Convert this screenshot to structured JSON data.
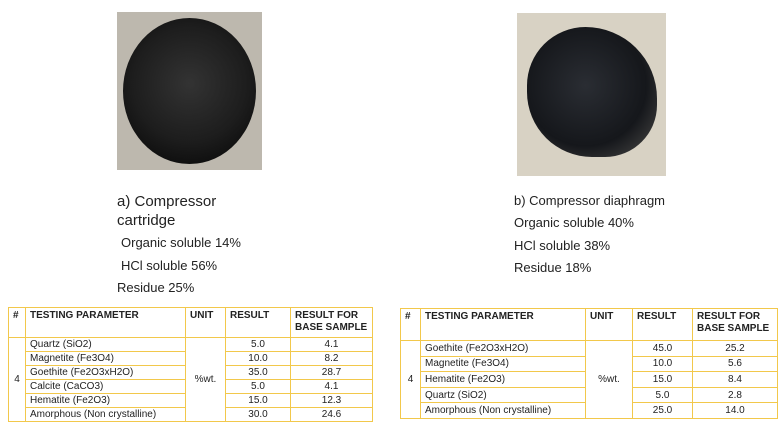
{
  "panels": [
    {
      "caption": "a) Compressor cartridge",
      "lines": [
        "Organic soluble 14%",
        "HCl soluble 56%",
        "Residue 25%"
      ],
      "table": {
        "header": [
          "#",
          "TESTING PARAMETER",
          "UNIT",
          "RESULT",
          "RESULT FOR BASE SAMPLE"
        ],
        "index": "4",
        "unit": "%wt.",
        "rows": [
          [
            "Quartz (SiO2)",
            "5.0",
            "4.1"
          ],
          [
            "Magnetite (Fe3O4)",
            "10.0",
            "8.2"
          ],
          [
            "Goethite (Fe2O3xH2O)",
            "35.0",
            "28.7"
          ],
          [
            "Calcite (CaCO3)",
            "5.0",
            "4.1"
          ],
          [
            "Hematite (Fe2O3)",
            "15.0",
            "12.3"
          ],
          [
            "Amorphous (Non crystalline)",
            "30.0",
            "24.6"
          ]
        ]
      }
    },
    {
      "caption": "b) Compressor diaphragm",
      "lines": [
        "Organic soluble 40%",
        "HCl soluble 38%",
        "Residue 18%"
      ],
      "table": {
        "header": [
          "#",
          "TESTING PARAMETER",
          "UNIT",
          "RESULT",
          "RESULT FOR BASE SAMPLE"
        ],
        "index": "4",
        "unit": "%wt.",
        "rows": [
          [
            "Goethite (Fe2O3xH2O)",
            "45.0",
            "25.2"
          ],
          [
            "Magnetite (Fe3O4)",
            "10.0",
            "5.6"
          ],
          [
            "Hematite (Fe2O3)",
            "15.0",
            "8.4"
          ],
          [
            "Quartz (SiO2)",
            "5.0",
            "2.8"
          ],
          [
            "Amorphous (Non crystalline)",
            "25.0",
            "14.0"
          ]
        ]
      }
    }
  ]
}
